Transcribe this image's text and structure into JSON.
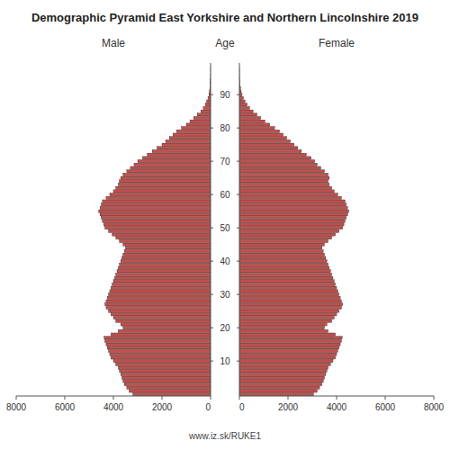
{
  "chart_data": {
    "type": "bar",
    "orientation": "horizontal",
    "title": "Demographic Pyramid East Yorkshire and Northern Lincolnshire 2019",
    "ylabel": "Age",
    "annotations": [
      "www.iz.sk/RUKE1"
    ],
    "color": "#c0504d",
    "categories": [
      0,
      1,
      2,
      3,
      4,
      5,
      6,
      7,
      8,
      9,
      10,
      11,
      12,
      13,
      14,
      15,
      16,
      17,
      18,
      19,
      20,
      21,
      22,
      23,
      24,
      25,
      26,
      27,
      28,
      29,
      30,
      31,
      32,
      33,
      34,
      35,
      36,
      37,
      38,
      39,
      40,
      41,
      42,
      43,
      44,
      45,
      46,
      47,
      48,
      49,
      50,
      51,
      52,
      53,
      54,
      55,
      56,
      57,
      58,
      59,
      60,
      61,
      62,
      63,
      64,
      65,
      66,
      67,
      68,
      69,
      70,
      71,
      72,
      73,
      74,
      75,
      76,
      77,
      78,
      79,
      80,
      81,
      82,
      83,
      84,
      85,
      86,
      87,
      88,
      89,
      90,
      91,
      92,
      93,
      94,
      95,
      96,
      97,
      98,
      99
    ],
    "series": [
      {
        "name": "Male",
        "values": [
          3200,
          3350,
          3450,
          3550,
          3600,
          3650,
          3700,
          3750,
          3800,
          3900,
          4000,
          4100,
          4150,
          4200,
          4250,
          4300,
          4350,
          4380,
          4100,
          3800,
          3600,
          3700,
          3900,
          4000,
          4100,
          4200,
          4300,
          4350,
          4300,
          4250,
          4200,
          4150,
          4100,
          4050,
          4000,
          3950,
          3900,
          3850,
          3800,
          3750,
          3700,
          3650,
          3600,
          3550,
          3500,
          3600,
          3750,
          3900,
          4050,
          4200,
          4350,
          4400,
          4450,
          4500,
          4550,
          4600,
          4550,
          4500,
          4450,
          4300,
          4150,
          4000,
          3900,
          3800,
          3750,
          3700,
          3600,
          3450,
          3300,
          3150,
          3000,
          2800,
          2600,
          2400,
          2200,
          2000,
          1850,
          1700,
          1550,
          1400,
          1200,
          1000,
          850,
          700,
          550,
          400,
          300,
          220,
          160,
          110,
          70,
          45,
          28,
          16,
          9,
          5,
          3,
          1,
          1,
          0
        ]
      },
      {
        "name": "Female",
        "values": [
          3050,
          3200,
          3300,
          3400,
          3450,
          3500,
          3550,
          3600,
          3650,
          3750,
          3850,
          3950,
          4000,
          4050,
          4100,
          4150,
          4200,
          4230,
          3950,
          3650,
          3500,
          3600,
          3800,
          3900,
          4000,
          4100,
          4200,
          4250,
          4200,
          4150,
          4100,
          4050,
          4000,
          3950,
          3900,
          3850,
          3800,
          3750,
          3700,
          3650,
          3600,
          3550,
          3500,
          3450,
          3400,
          3500,
          3650,
          3800,
          3950,
          4100,
          4250,
          4300,
          4350,
          4400,
          4450,
          4500,
          4450,
          4400,
          4350,
          4200,
          4050,
          3900,
          3800,
          3700,
          3650,
          3700,
          3650,
          3500,
          3350,
          3200,
          3100,
          2950,
          2750,
          2550,
          2400,
          2250,
          2100,
          1950,
          1800,
          1650,
          1450,
          1250,
          1050,
          880,
          720,
          560,
          420,
          320,
          230,
          165,
          110,
          72,
          46,
          27,
          16,
          9,
          5,
          3,
          1,
          0
        ]
      }
    ],
    "xlim": [
      0,
      8000
    ],
    "xticks": [
      0,
      2000,
      4000,
      6000,
      8000
    ],
    "ylim": [
      -0.5,
      99.5
    ],
    "yticks": [
      10,
      20,
      30,
      40,
      50,
      60,
      70,
      80,
      90
    ],
    "grid": false
  }
}
